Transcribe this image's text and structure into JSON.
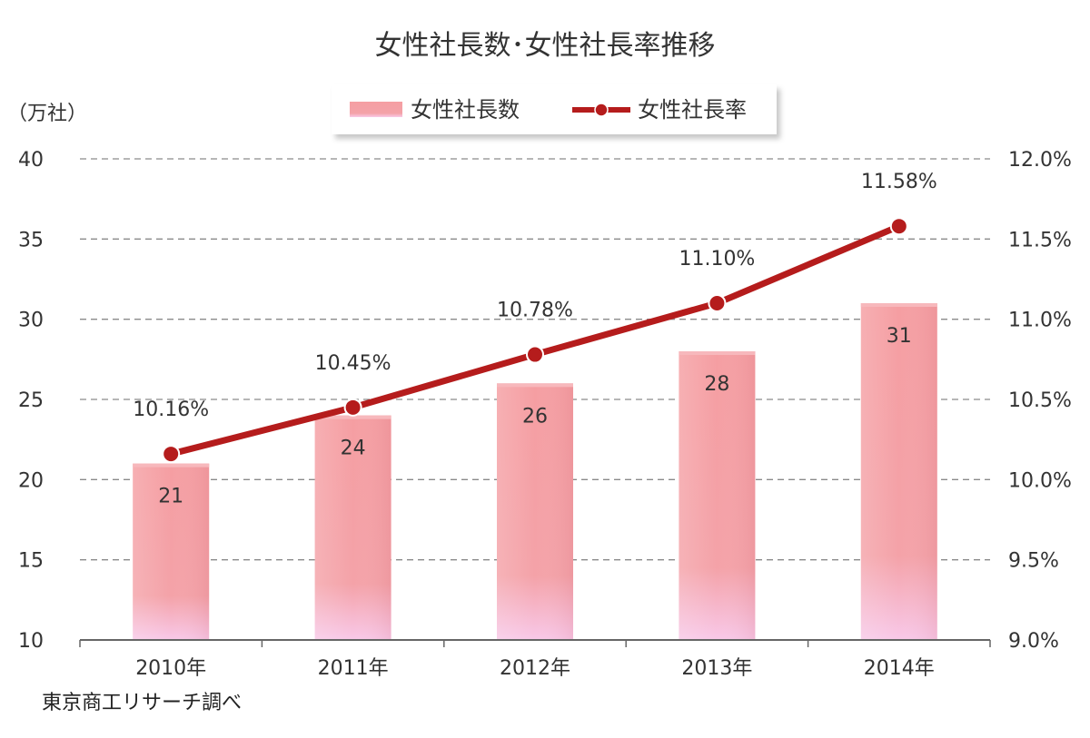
{
  "chart_data": {
    "type": "bar",
    "title": "女性社長数･女性社長率推移",
    "categories": [
      "2010年",
      "2011年",
      "2012年",
      "2013年",
      "2014年"
    ],
    "series": [
      {
        "name": "女性社長数",
        "type": "bar",
        "axis": "left",
        "values": [
          21,
          24,
          26,
          28,
          31
        ],
        "labels": [
          "21",
          "24",
          "26",
          "28",
          "31"
        ],
        "color": "#f4a0a4"
      },
      {
        "name": "女性社長率",
        "type": "line",
        "axis": "right",
        "values": [
          10.16,
          10.45,
          10.78,
          11.1,
          11.58
        ],
        "labels": [
          "10.16%",
          "10.45%",
          "10.78%",
          "11.10%",
          "11.58%"
        ],
        "color": "#b51c1c"
      }
    ],
    "ylabel": "（万社）",
    "ylim": [
      10,
      40
    ],
    "yticks": [
      "10",
      "15",
      "20",
      "25",
      "30",
      "35",
      "40"
    ],
    "y2lim": [
      9.0,
      12.0
    ],
    "y2ticks": [
      "9.0%",
      "9.5%",
      "10.0%",
      "10.5%",
      "11.0%",
      "11.5%",
      "12.0%"
    ],
    "grid": true,
    "legend": "top-center",
    "source": "東京商工リサーチ調べ"
  }
}
